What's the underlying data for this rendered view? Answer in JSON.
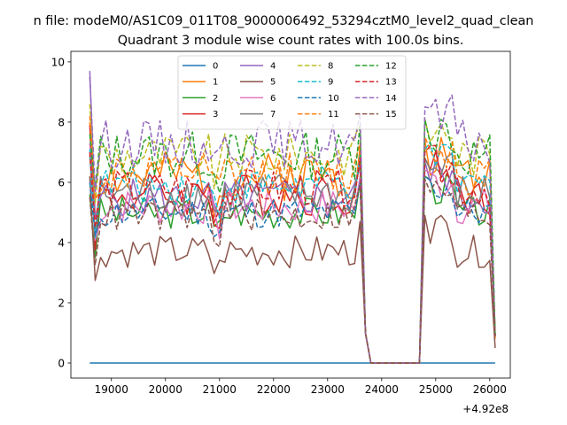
{
  "chart_data": {
    "type": "line",
    "suptitle": "n file: modeM0/AS1C09_011T08_9000006492_53294cztM0_level2_quad_clean",
    "title": "Quadrant 3 module wise count rates with 100.0s bins.",
    "xlabel": "",
    "ylabel": "",
    "x_offset_label": "+4.92e8",
    "xlim": [
      18250,
      26380
    ],
    "ylim": [
      -0.5,
      10.35
    ],
    "xticks": [
      19000,
      20000,
      21000,
      22000,
      23000,
      24000,
      25000,
      26000
    ],
    "yticks": [
      0,
      2,
      4,
      6,
      8,
      10
    ],
    "xtick_labels": [
      "19000",
      "20000",
      "21000",
      "22000",
      "23000",
      "24000",
      "25000",
      "26000"
    ],
    "ytick_labels": [
      "0",
      "2",
      "4",
      "6",
      "8",
      "10"
    ],
    "grid": false,
    "legend_position": "top-center",
    "legend_columns": 4,
    "bin_seconds": 100,
    "x_start": 18600,
    "x_step": 100,
    "gap_x": [
      23800,
      24700
    ],
    "series": [
      {
        "name": "0",
        "color": "#1f77b4",
        "dash": "solid",
        "base": 0.0,
        "first": 0.0,
        "last": 0.0,
        "amp": 0.0,
        "seed": 1
      },
      {
        "name": "1",
        "color": "#ff7f0e",
        "dash": "solid",
        "base": 6.2,
        "first": 8.0,
        "last": 0.8,
        "amp": 0.45,
        "seed": 2
      },
      {
        "name": "2",
        "color": "#2ca02c",
        "dash": "solid",
        "base": 5.0,
        "first": 5.6,
        "last": 0.9,
        "amp": 0.3,
        "seed": 3
      },
      {
        "name": "3",
        "color": "#d62728",
        "dash": "solid",
        "base": 5.6,
        "first": 7.9,
        "last": 0.9,
        "amp": 0.4,
        "seed": 4
      },
      {
        "name": "4",
        "color": "#9467bd",
        "dash": "solid",
        "base": 5.5,
        "first": 9.7,
        "last": 0.9,
        "amp": 0.35,
        "seed": 5
      },
      {
        "name": "5",
        "color": "#8c564b",
        "dash": "solid",
        "base": 3.7,
        "first": 6.2,
        "last": 0.5,
        "amp": 0.3,
        "seed": 6
      },
      {
        "name": "6",
        "color": "#e377c2",
        "dash": "solid",
        "base": 5.2,
        "first": 7.3,
        "last": 0.9,
        "amp": 0.35,
        "seed": 7
      },
      {
        "name": "7",
        "color": "#7f7f7f",
        "dash": "solid",
        "base": 5.6,
        "first": 6.9,
        "last": 0.9,
        "amp": 0.4,
        "seed": 8
      },
      {
        "name": "8",
        "color": "#bcbd22",
        "dash": "dashed",
        "base": 6.9,
        "first": 8.6,
        "last": 0.9,
        "amp": 0.4,
        "seed": 9
      },
      {
        "name": "9",
        "color": "#17becf",
        "dash": "dashed",
        "base": 5.9,
        "first": 7.1,
        "last": 0.9,
        "amp": 0.35,
        "seed": 10
      },
      {
        "name": "10",
        "color": "#1f77b4",
        "dash": "dashed",
        "base": 5.0,
        "first": 6.0,
        "last": 0.9,
        "amp": 0.3,
        "seed": 11
      },
      {
        "name": "11",
        "color": "#ff7f0e",
        "dash": "dashed",
        "base": 6.3,
        "first": 8.2,
        "last": 0.9,
        "amp": 0.4,
        "seed": 12
      },
      {
        "name": "12",
        "color": "#2ca02c",
        "dash": "dashed",
        "base": 6.9,
        "first": 7.6,
        "last": 0.9,
        "amp": 0.45,
        "seed": 13
      },
      {
        "name": "13",
        "color": "#d62728",
        "dash": "dashed",
        "base": 5.8,
        "first": 7.0,
        "last": 0.9,
        "amp": 0.35,
        "seed": 14
      },
      {
        "name": "14",
        "color": "#9467bd",
        "dash": "dashed",
        "base": 7.3,
        "first": 9.5,
        "last": 0.9,
        "amp": 0.45,
        "seed": 15
      },
      {
        "name": "15",
        "color": "#8c564b",
        "dash": "dashed",
        "base": 4.9,
        "first": 5.5,
        "last": 0.9,
        "amp": 0.3,
        "seed": 16
      }
    ]
  }
}
